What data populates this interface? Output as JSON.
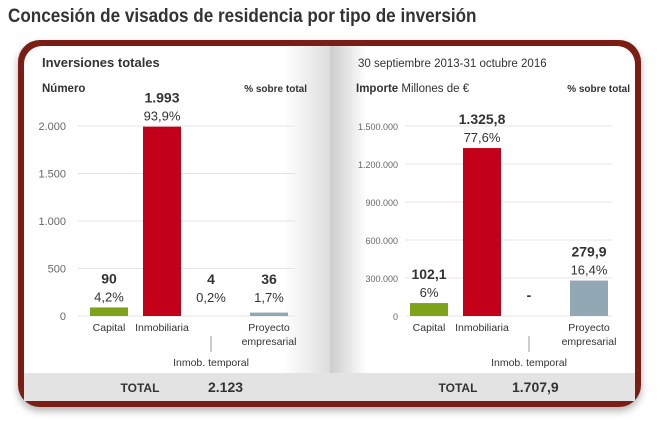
{
  "title": "Concesión de visados de residencia por tipo de inversión",
  "chart_data": [
    {
      "type": "bar",
      "title": "Inversiones totales",
      "ylabel": "Número",
      "right_label": "% sobre total",
      "ylim": [
        0,
        2000
      ],
      "yticks": [
        0,
        500,
        1000,
        1500,
        2000
      ],
      "ytick_labels": [
        "0",
        "500",
        "1.000",
        "1.500",
        "2.000"
      ],
      "categories": [
        "Capital",
        "Inmobiliaria",
        "Inmob. temporal",
        "Proyecto empresarial"
      ],
      "values": [
        90,
        1993,
        4,
        36
      ],
      "value_labels": [
        "90",
        "1.993",
        "4",
        "36"
      ],
      "pct_labels": [
        "4,2%",
        "93,9%",
        "0,2%",
        "1,7%"
      ],
      "colors": [
        "#7ea31b",
        "#c20019",
        "#c20019",
        "#93a8b5"
      ],
      "total_label": "TOTAL",
      "total": "2.123"
    },
    {
      "type": "bar",
      "title": "30 septiembre 2013-31 octubre 2016",
      "ylabel": "Importe",
      "ylabel_unit": "Millones de €",
      "right_label": "% sobre total",
      "ylim": [
        0,
        1500000
      ],
      "yticks": [
        0,
        300000,
        600000,
        900000,
        1200000,
        1500000
      ],
      "ytick_labels": [
        "0",
        "300.000",
        "600.000",
        "900.000",
        "1.200.000",
        "1.500.000"
      ],
      "categories": [
        "Capital",
        "Inmobiliaria",
        "Inmob. temporal",
        "Proyecto empresarial"
      ],
      "values": [
        102100,
        1325800,
        0,
        279900
      ],
      "value_labels": [
        "102,1",
        "1.325,8",
        "-",
        "279,9"
      ],
      "pct_labels": [
        "6%",
        "77,6%",
        "",
        "16,4%"
      ],
      "colors": [
        "#7ea31b",
        "#c20019",
        "#c20019",
        "#93a8b5"
      ],
      "total_label": "TOTAL",
      "total": "1.707,9"
    }
  ]
}
